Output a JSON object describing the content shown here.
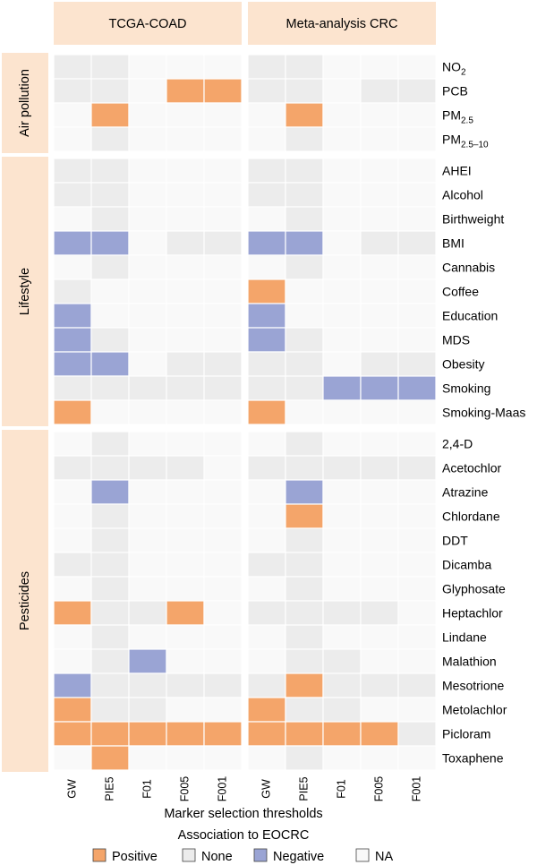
{
  "chart_data": {
    "type": "heatmap",
    "panels": [
      "TCGA-COAD",
      "Meta-analysis CRC"
    ],
    "columns": [
      "GW",
      "PIE5",
      "F01",
      "F005",
      "F001"
    ],
    "groups": [
      {
        "name": "Air pollution",
        "rows": [
          0,
          3
        ]
      },
      {
        "name": "Lifestyle",
        "rows": [
          4,
          14
        ]
      },
      {
        "name": "Pesticides",
        "rows": [
          15,
          28
        ]
      }
    ],
    "rows": [
      {
        "label": "NO2",
        "base": "NO",
        "sub": "2",
        "tcga": [
          "None",
          "None",
          "NA",
          "NA",
          "NA"
        ],
        "meta": [
          "None",
          "None",
          "NA",
          "NA",
          "NA"
        ]
      },
      {
        "label": "PCB",
        "base": "PCB",
        "sub": "",
        "tcga": [
          "None",
          "None",
          "NA",
          "Positive",
          "Positive"
        ],
        "meta": [
          "None",
          "None",
          "NA",
          "None",
          "None"
        ]
      },
      {
        "label": "PM2.5",
        "base": "PM",
        "sub": "2.5",
        "tcga": [
          "NA",
          "Positive",
          "NA",
          "NA",
          "NA"
        ],
        "meta": [
          "NA",
          "Positive",
          "NA",
          "NA",
          "NA"
        ]
      },
      {
        "label": "PM2.5–10",
        "base": "PM",
        "sub": "2.5–10",
        "tcga": [
          "NA",
          "None",
          "NA",
          "NA",
          "NA"
        ],
        "meta": [
          "NA",
          "None",
          "NA",
          "NA",
          "NA"
        ]
      },
      {
        "label": "AHEI",
        "base": "AHEI",
        "sub": "",
        "tcga": [
          "None",
          "None",
          "NA",
          "NA",
          "NA"
        ],
        "meta": [
          "None",
          "None",
          "NA",
          "NA",
          "NA"
        ]
      },
      {
        "label": "Alcohol",
        "base": "Alcohol",
        "sub": "",
        "tcga": [
          "None",
          "None",
          "NA",
          "NA",
          "NA"
        ],
        "meta": [
          "None",
          "None",
          "NA",
          "NA",
          "NA"
        ]
      },
      {
        "label": "Birthweight",
        "base": "Birthweight",
        "sub": "",
        "tcga": [
          "NA",
          "None",
          "NA",
          "NA",
          "NA"
        ],
        "meta": [
          "NA",
          "None",
          "NA",
          "NA",
          "NA"
        ]
      },
      {
        "label": "BMI",
        "base": "BMI",
        "sub": "",
        "tcga": [
          "Negative",
          "Negative",
          "NA",
          "None",
          "None"
        ],
        "meta": [
          "Negative",
          "Negative",
          "NA",
          "None",
          "None"
        ]
      },
      {
        "label": "Cannabis",
        "base": "Cannabis",
        "sub": "",
        "tcga": [
          "NA",
          "None",
          "NA",
          "NA",
          "NA"
        ],
        "meta": [
          "NA",
          "None",
          "NA",
          "NA",
          "NA"
        ]
      },
      {
        "label": "Coffee",
        "base": "Coffee",
        "sub": "",
        "tcga": [
          "None",
          "NA",
          "NA",
          "NA",
          "NA"
        ],
        "meta": [
          "Positive",
          "NA",
          "NA",
          "NA",
          "NA"
        ]
      },
      {
        "label": "Education",
        "base": "Education",
        "sub": "",
        "tcga": [
          "Negative",
          "NA",
          "NA",
          "NA",
          "NA"
        ],
        "meta": [
          "Negative",
          "NA",
          "NA",
          "NA",
          "NA"
        ]
      },
      {
        "label": "MDS",
        "base": "MDS",
        "sub": "",
        "tcga": [
          "Negative",
          "None",
          "NA",
          "NA",
          "NA"
        ],
        "meta": [
          "Negative",
          "None",
          "NA",
          "NA",
          "NA"
        ]
      },
      {
        "label": "Obesity",
        "base": "Obesity",
        "sub": "",
        "tcga": [
          "Negative",
          "Negative",
          "NA",
          "None",
          "None"
        ],
        "meta": [
          "None",
          "None",
          "NA",
          "None",
          "None"
        ]
      },
      {
        "label": "Smoking",
        "base": "Smoking",
        "sub": "",
        "tcga": [
          "None",
          "None",
          "None",
          "None",
          "None"
        ],
        "meta": [
          "None",
          "None",
          "Negative",
          "Negative",
          "Negative"
        ]
      },
      {
        "label": "Smoking-Maas",
        "base": "Smoking-Maas",
        "sub": "",
        "tcga": [
          "Positive",
          "NA",
          "NA",
          "NA",
          "NA"
        ],
        "meta": [
          "Positive",
          "NA",
          "NA",
          "NA",
          "NA"
        ]
      },
      {
        "label": "2,4-D",
        "base": "2,4-D",
        "sub": "",
        "tcga": [
          "NA",
          "None",
          "NA",
          "NA",
          "NA"
        ],
        "meta": [
          "NA",
          "None",
          "NA",
          "NA",
          "NA"
        ]
      },
      {
        "label": "Acetochlor",
        "base": "Acetochlor",
        "sub": "",
        "tcga": [
          "None",
          "None",
          "None",
          "None",
          "NA"
        ],
        "meta": [
          "None",
          "None",
          "None",
          "None",
          "None"
        ]
      },
      {
        "label": "Atrazine",
        "base": "Atrazine",
        "sub": "",
        "tcga": [
          "NA",
          "Negative",
          "NA",
          "NA",
          "NA"
        ],
        "meta": [
          "NA",
          "Negative",
          "NA",
          "NA",
          "NA"
        ]
      },
      {
        "label": "Chlordane",
        "base": "Chlordane",
        "sub": "",
        "tcga": [
          "NA",
          "None",
          "NA",
          "NA",
          "NA"
        ],
        "meta": [
          "NA",
          "Positive",
          "NA",
          "NA",
          "NA"
        ]
      },
      {
        "label": "DDT",
        "base": "DDT",
        "sub": "",
        "tcga": [
          "NA",
          "None",
          "NA",
          "NA",
          "NA"
        ],
        "meta": [
          "NA",
          "None",
          "NA",
          "NA",
          "NA"
        ]
      },
      {
        "label": "Dicamba",
        "base": "Dicamba",
        "sub": "",
        "tcga": [
          "None",
          "None",
          "NA",
          "NA",
          "NA"
        ],
        "meta": [
          "None",
          "None",
          "NA",
          "NA",
          "NA"
        ]
      },
      {
        "label": "Glyphosate",
        "base": "Glyphosate",
        "sub": "",
        "tcga": [
          "NA",
          "None",
          "NA",
          "NA",
          "NA"
        ],
        "meta": [
          "NA",
          "None",
          "NA",
          "NA",
          "NA"
        ]
      },
      {
        "label": "Heptachlor",
        "base": "Heptachlor",
        "sub": "",
        "tcga": [
          "Positive",
          "None",
          "None",
          "Positive",
          "NA"
        ],
        "meta": [
          "None",
          "None",
          "None",
          "None",
          "NA"
        ]
      },
      {
        "label": "Lindane",
        "base": "Lindane",
        "sub": "",
        "tcga": [
          "NA",
          "None",
          "NA",
          "NA",
          "NA"
        ],
        "meta": [
          "NA",
          "None",
          "NA",
          "NA",
          "NA"
        ]
      },
      {
        "label": "Malathion",
        "base": "Malathion",
        "sub": "",
        "tcga": [
          "NA",
          "None",
          "Negative",
          "NA",
          "NA"
        ],
        "meta": [
          "NA",
          "None",
          "None",
          "NA",
          "NA"
        ]
      },
      {
        "label": "Mesotrione",
        "base": "Mesotrione",
        "sub": "",
        "tcga": [
          "Negative",
          "None",
          "None",
          "None",
          "None"
        ],
        "meta": [
          "None",
          "Positive",
          "None",
          "None",
          "None"
        ]
      },
      {
        "label": "Metolachlor",
        "base": "Metolachlor",
        "sub": "",
        "tcga": [
          "Positive",
          "None",
          "None",
          "NA",
          "NA"
        ],
        "meta": [
          "Positive",
          "None",
          "None",
          "NA",
          "NA"
        ]
      },
      {
        "label": "Picloram",
        "base": "Picloram",
        "sub": "",
        "tcga": [
          "Positive",
          "Positive",
          "Positive",
          "Positive",
          "Positive"
        ],
        "meta": [
          "Positive",
          "Positive",
          "Positive",
          "Positive",
          "None"
        ]
      },
      {
        "label": "Toxaphene",
        "base": "Toxaphene",
        "sub": "",
        "tcga": [
          "NA",
          "Positive",
          "NA",
          "NA",
          "NA"
        ],
        "meta": [
          "NA",
          "None",
          "NA",
          "NA",
          "NA"
        ]
      }
    ],
    "xlabel": "Marker selection thresholds",
    "legend": {
      "title": "Association to EOCRC",
      "items": [
        {
          "label": "Positive",
          "color": "#f4a56a"
        },
        {
          "label": "None",
          "color": "#ececec"
        },
        {
          "label": "Negative",
          "color": "#9aa4d4"
        },
        {
          "label": "NA",
          "color": "#f9f9f9"
        }
      ]
    }
  },
  "colors": {
    "panel_header_bg": "#fce4cf",
    "group_bg": "#fce4cf",
    "Positive": "#f4a56a",
    "None": "#ececec",
    "Negative": "#9aa4d4",
    "NA": "#f9f9f9"
  }
}
